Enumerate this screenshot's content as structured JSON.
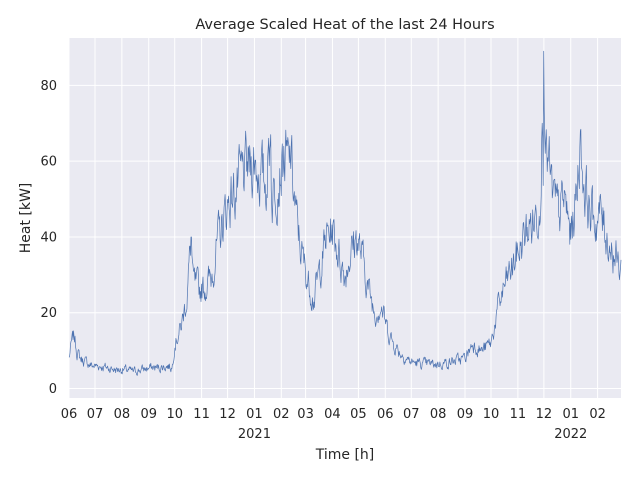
{
  "chart_data": {
    "type": "line",
    "title": "Average Scaled Heat of the last 24 Hours",
    "xlabel": "Time [h]",
    "ylabel": "Heat [kW]",
    "ylim": [
      -2.5,
      92.5
    ],
    "xlim": [
      "2020-06-01",
      "2022-02-28"
    ],
    "grid": true,
    "legend": "none",
    "style": {
      "background": "#EAEAF2",
      "grid_color": "#ffffff",
      "line_color": "#4C72B0"
    },
    "y_ticks": [
      0,
      20,
      40,
      60,
      80
    ],
    "x_ticks": [
      {
        "date": "2020-06-01",
        "label": "06",
        "year": ""
      },
      {
        "date": "2020-07-01",
        "label": "07",
        "year": ""
      },
      {
        "date": "2020-08-01",
        "label": "08",
        "year": ""
      },
      {
        "date": "2020-09-01",
        "label": "09",
        "year": ""
      },
      {
        "date": "2020-10-01",
        "label": "10",
        "year": ""
      },
      {
        "date": "2020-11-01",
        "label": "11",
        "year": ""
      },
      {
        "date": "2020-12-01",
        "label": "12",
        "year": ""
      },
      {
        "date": "2021-01-01",
        "label": "01",
        "year": "2021"
      },
      {
        "date": "2021-02-01",
        "label": "02",
        "year": ""
      },
      {
        "date": "2021-03-01",
        "label": "03",
        "year": ""
      },
      {
        "date": "2021-04-01",
        "label": "04",
        "year": ""
      },
      {
        "date": "2021-05-01",
        "label": "05",
        "year": ""
      },
      {
        "date": "2021-06-01",
        "label": "06",
        "year": ""
      },
      {
        "date": "2021-07-01",
        "label": "07",
        "year": ""
      },
      {
        "date": "2021-08-01",
        "label": "08",
        "year": ""
      },
      {
        "date": "2021-09-01",
        "label": "09",
        "year": ""
      },
      {
        "date": "2021-10-01",
        "label": "10",
        "year": ""
      },
      {
        "date": "2021-11-01",
        "label": "11",
        "year": ""
      },
      {
        "date": "2021-12-01",
        "label": "12",
        "year": ""
      },
      {
        "date": "2022-01-01",
        "label": "01",
        "year": "2022"
      },
      {
        "date": "2022-02-01",
        "label": "02",
        "year": ""
      }
    ],
    "series": [
      {
        "x": [
          "2020-06-01",
          "2020-06-04",
          "2020-06-07",
          "2020-06-10",
          "2020-06-14",
          "2020-06-20",
          "2020-06-28",
          "2020-07-06",
          "2020-07-15",
          "2020-07-25",
          "2020-08-04",
          "2020-08-14",
          "2020-08-24",
          "2020-09-03",
          "2020-09-13",
          "2020-09-23",
          "2020-09-28",
          "2020-10-01",
          "2020-10-08",
          "2020-10-15",
          "2020-10-22",
          "2020-10-29",
          "2020-11-05",
          "2020-11-12",
          "2020-11-19",
          "2020-11-26",
          "2020-12-03",
          "2020-12-10",
          "2020-12-17",
          "2020-12-24",
          "2020-12-31",
          "2021-01-07",
          "2021-01-14",
          "2021-01-21",
          "2021-01-28",
          "2021-02-04",
          "2021-02-11",
          "2021-02-18",
          "2021-02-25",
          "2021-03-04",
          "2021-03-11",
          "2021-03-18",
          "2021-03-25",
          "2021-04-01",
          "2021-04-08",
          "2021-04-15",
          "2021-04-22",
          "2021-04-29",
          "2021-05-06",
          "2021-05-13",
          "2021-05-20",
          "2021-05-27",
          "2021-06-03",
          "2021-06-10",
          "2021-06-20",
          "2021-07-01",
          "2021-07-15",
          "2021-08-01",
          "2021-08-15",
          "2021-09-01",
          "2021-09-10",
          "2021-09-20",
          "2021-10-01",
          "2021-10-08",
          "2021-10-15",
          "2021-10-22",
          "2021-10-29",
          "2021-11-05",
          "2021-11-12",
          "2021-11-19",
          "2021-11-26",
          "2021-12-01",
          "2021-12-04",
          "2021-12-11",
          "2021-12-18",
          "2021-12-25",
          "2022-01-01",
          "2022-01-08",
          "2022-01-15",
          "2022-01-22",
          "2022-01-29",
          "2022-02-05",
          "2022-02-12",
          "2022-02-19",
          "2022-02-26"
        ],
        "y": [
          8,
          12,
          14,
          10,
          8,
          7,
          6,
          6,
          5.5,
          5,
          5,
          4.5,
          5,
          5.5,
          5.5,
          6,
          5.5,
          12,
          16,
          24,
          28,
          26,
          27,
          29,
          38,
          44,
          50,
          52,
          56,
          58,
          60,
          57,
          54,
          50,
          56,
          61,
          58,
          45,
          35,
          28,
          24,
          32,
          40,
          42,
          36,
          30,
          36,
          40,
          34,
          26,
          20,
          22,
          16,
          12,
          9,
          7,
          6.5,
          6.5,
          7,
          8,
          12,
          10,
          12,
          20,
          26,
          30,
          34,
          38,
          42,
          44,
          48,
          52,
          60,
          50,
          46,
          50,
          40,
          52,
          56,
          48,
          44,
          46,
          40,
          36,
          32
        ]
      }
    ],
    "peaks": [
      {
        "x": "2021-12-01",
        "y": 89
      },
      {
        "x": "2021-11-29",
        "y": 70
      },
      {
        "x": "2021-12-06",
        "y": 60
      },
      {
        "x": "2022-01-12",
        "y": 68
      },
      {
        "x": "2021-01-20",
        "y": 67
      },
      {
        "x": "2021-02-11",
        "y": 64
      },
      {
        "x": "2020-10-20",
        "y": 40
      }
    ]
  }
}
